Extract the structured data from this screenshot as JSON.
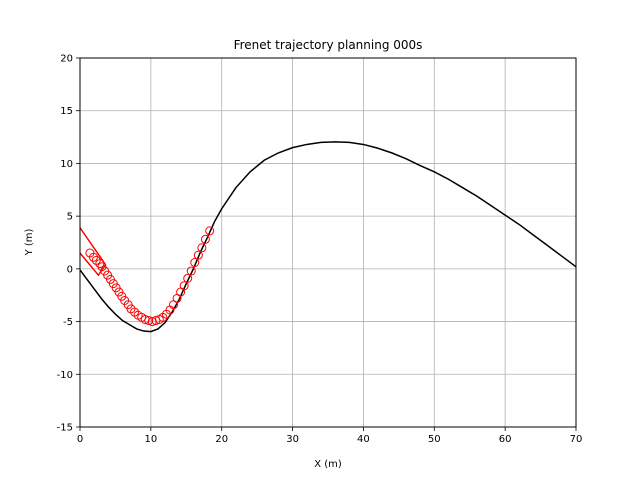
{
  "chart_data": {
    "type": "line",
    "title": "Frenet trajectory planning 000s",
    "xlabel": "X (m)",
    "ylabel": "Y (m)",
    "xlim": [
      0,
      70
    ],
    "ylim": [
      -15,
      20
    ],
    "xticks": [
      0,
      10,
      20,
      30,
      40,
      50,
      60,
      70
    ],
    "yticks": [
      -15,
      -10,
      -5,
      0,
      5,
      10,
      15,
      20
    ],
    "grid": true,
    "series": [
      {
        "style": "line",
        "color": "#000000",
        "points": [
          [
            0,
            -0.1
          ],
          [
            1,
            -1.0
          ],
          [
            2,
            -1.9
          ],
          [
            3,
            -2.8
          ],
          [
            4,
            -3.6
          ],
          [
            5,
            -4.3
          ],
          [
            6,
            -4.9
          ],
          [
            7,
            -5.3
          ],
          [
            8,
            -5.7
          ],
          [
            9,
            -5.9
          ],
          [
            10,
            -5.95
          ],
          [
            11,
            -5.7
          ],
          [
            12,
            -5.1
          ],
          [
            13,
            -4.1
          ],
          [
            14,
            -2.9
          ],
          [
            15,
            -1.4
          ],
          [
            16,
            0.0
          ],
          [
            17,
            1.6
          ],
          [
            18,
            3.0
          ],
          [
            19,
            4.5
          ],
          [
            20,
            5.7
          ],
          [
            22,
            7.7
          ],
          [
            24,
            9.2
          ],
          [
            26,
            10.3
          ],
          [
            28,
            11.0
          ],
          [
            30,
            11.5
          ],
          [
            32,
            11.8
          ],
          [
            34,
            12.0
          ],
          [
            36,
            12.05
          ],
          [
            38,
            12.0
          ],
          [
            40,
            11.8
          ],
          [
            42,
            11.45
          ],
          [
            44,
            11.0
          ],
          [
            46,
            10.45
          ],
          [
            48,
            9.8
          ],
          [
            50,
            9.2
          ],
          [
            52,
            8.5
          ],
          [
            54,
            7.7
          ],
          [
            56,
            6.9
          ],
          [
            58,
            6.0
          ],
          [
            60,
            5.1
          ],
          [
            62,
            4.2
          ],
          [
            64,
            3.2
          ],
          [
            66,
            2.2
          ],
          [
            68,
            1.2
          ],
          [
            70,
            0.2
          ]
        ]
      },
      {
        "style": "circles",
        "color": "#ff0000",
        "points": [
          [
            1.4,
            1.5
          ],
          [
            1.9,
            1.1
          ],
          [
            2.3,
            0.8
          ],
          [
            2.8,
            0.5
          ],
          [
            3.1,
            0.2
          ],
          [
            3.5,
            -0.2
          ],
          [
            3.9,
            -0.6
          ],
          [
            4.3,
            -1.0
          ],
          [
            4.7,
            -1.4
          ],
          [
            5.1,
            -1.8
          ],
          [
            5.5,
            -2.2
          ],
          [
            5.9,
            -2.6
          ],
          [
            6.3,
            -3.0
          ],
          [
            6.8,
            -3.4
          ],
          [
            7.2,
            -3.8
          ],
          [
            7.7,
            -4.1
          ],
          [
            8.2,
            -4.4
          ],
          [
            8.7,
            -4.6
          ],
          [
            9.2,
            -4.8
          ],
          [
            9.7,
            -4.9
          ],
          [
            10.2,
            -5.0
          ],
          [
            10.7,
            -4.9
          ],
          [
            11.2,
            -4.8
          ],
          [
            11.7,
            -4.6
          ],
          [
            12.2,
            -4.3
          ],
          [
            12.7,
            -3.9
          ],
          [
            13.2,
            -3.4
          ],
          [
            13.7,
            -2.8
          ],
          [
            14.2,
            -2.2
          ],
          [
            14.7,
            -1.6
          ],
          [
            15.2,
            -0.9
          ],
          [
            15.7,
            -0.2
          ],
          [
            16.2,
            0.6
          ],
          [
            16.7,
            1.3
          ],
          [
            17.2,
            2.0
          ],
          [
            17.7,
            2.8
          ],
          [
            18.3,
            3.6
          ]
        ]
      },
      {
        "style": "line",
        "color": "#ff0000",
        "points": [
          [
            0,
            3.9
          ],
          [
            3.6,
            0.4
          ],
          [
            2.6,
            -0.6
          ],
          [
            0,
            1.5
          ]
        ]
      }
    ]
  }
}
